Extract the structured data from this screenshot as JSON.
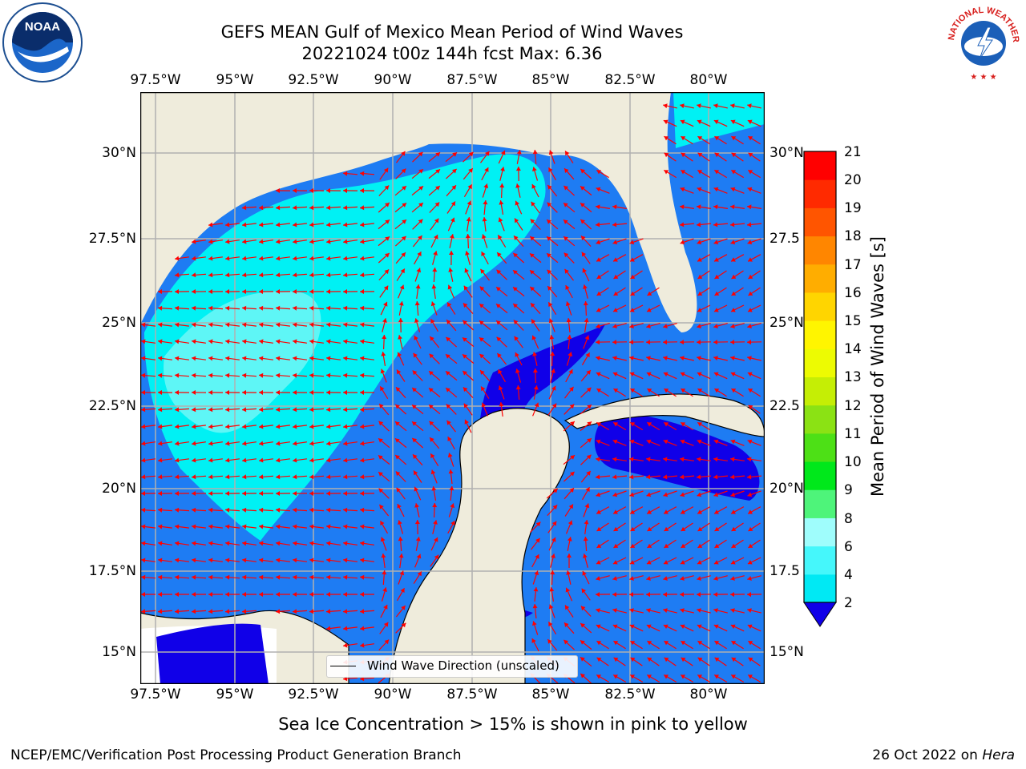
{
  "title": {
    "line1": "GEFS MEAN Gulf of Mexico Mean Period of Wind Waves",
    "line2": "20221024 t00z 144h fcst   Max: 6.36"
  },
  "longitude_ticks": [
    "97.5°W",
    "95°W",
    "92.5°W",
    "90°W",
    "87.5°W",
    "85°W",
    "82.5°W",
    "80°W"
  ],
  "latitude_ticks": [
    "30°N",
    "27.5°N",
    "25°N",
    "22.5°N",
    "20°N",
    "17.5°N",
    "15°N"
  ],
  "latitude_ticks_right": [
    "30°N",
    "27.5",
    "25°N",
    "22.5",
    "20°N",
    "17.5",
    "15°N"
  ],
  "legend": {
    "label": "Wind Wave Direction (unscaled)"
  },
  "colorbar": {
    "label": "Mean Period of Wind Waves [s]",
    "ticks": [
      "2",
      "4",
      "6",
      "8",
      "9",
      "10",
      "11",
      "12",
      "13",
      "14",
      "15",
      "16",
      "17",
      "18",
      "19",
      "20",
      "21"
    ],
    "colors": [
      "#0e7cf4",
      "#00e9f4",
      "#45f7fb",
      "#9ffdfc",
      "#4ef47a",
      "#00e81b",
      "#4de016",
      "#8be214",
      "#c5ee05",
      "#edfb02",
      "#fff500",
      "#ffd500",
      "#ffad00",
      "#ff8600",
      "#ff5500",
      "#ff2a00",
      "#ff0000"
    ],
    "under_color": "#1000e8"
  },
  "map_colors": {
    "land": "#efecdc",
    "open_water": "#ffffff",
    "class_2_4": "#1e7cf3",
    "class_under_2": "#1000e8",
    "class_4_6": "#00f1f4",
    "class_6_8": "#5ef6f6",
    "arrows": "#ff0000",
    "grid": "#b0b0b0"
  },
  "caption": "Sea Ice Concentration > 15% is shown in pink to yellow",
  "footer": {
    "left": "NCEP/EMC/Verification Post Processing Product Generation Branch",
    "right_prefix": "26 Oct 2022 on ",
    "right_host": "Hera"
  },
  "logos": {
    "noaa": "NOAA",
    "nws": "NATIONAL WEATHER SERVICE"
  }
}
